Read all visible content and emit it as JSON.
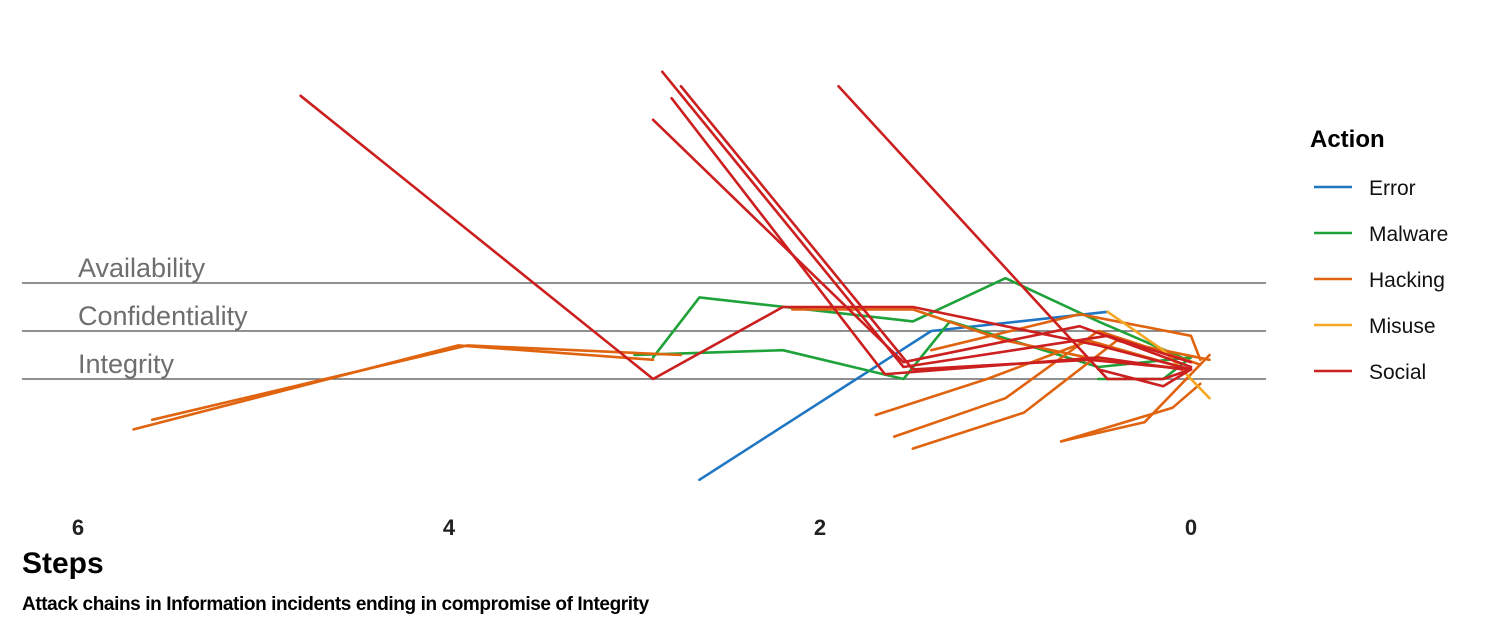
{
  "chart_data": {
    "type": "line",
    "title": "",
    "xlabel": "Steps",
    "caption": "Attack chains in Information incidents ending in compromise of Integrity",
    "xlim": [
      6.3,
      -0.4
    ],
    "x_ticks": [
      6,
      4,
      2,
      0
    ],
    "ylim": [
      -1.1,
      3.3
    ],
    "grid": false,
    "bands": [
      {
        "label": "Availability",
        "level": 3
      },
      {
        "label": "Confidentiality",
        "level": 2
      },
      {
        "label": "Integrity",
        "level": 1
      }
    ],
    "legend": {
      "title": "Action",
      "placement": "right",
      "items": [
        {
          "label": "Error",
          "color": "#1f77c4"
        },
        {
          "label": "Malware",
          "color": "#1fa23a"
        },
        {
          "label": "Hacking",
          "color": "#e0640f"
        },
        {
          "label": "Misuse",
          "color": "#f5a623"
        },
        {
          "label": "Social",
          "color": "#cc1f1f"
        }
      ]
    },
    "series": [
      {
        "action": "Error",
        "color": "#1f77c4",
        "x": [
          2.65,
          1.4,
          0.45
        ],
        "y": [
          -1.1,
          2.0,
          2.4
        ]
      },
      {
        "action": "Malware",
        "color": "#1fa23a",
        "x": [
          2.9,
          2.65,
          1.5,
          1.0,
          0.5,
          0.05
        ],
        "y": [
          1.45,
          2.7,
          2.2,
          3.1,
          2.2,
          1.45
        ]
      },
      {
        "action": "Malware",
        "color": "#1fa23a",
        "x": [
          3.0,
          2.2,
          1.55,
          1.3,
          0.5,
          0.0
        ],
        "y": [
          1.5,
          1.6,
          1.0,
          2.2,
          1.25,
          1.45
        ]
      },
      {
        "action": "Malware",
        "color": "#1fa23a",
        "x": [
          0.5,
          0.15,
          0.0
        ],
        "y": [
          1.0,
          1.0,
          1.45
        ]
      },
      {
        "action": "Hacking",
        "color": "#e0640f",
        "x": [
          5.7,
          3.95,
          2.9
        ],
        "y": [
          -0.05,
          1.7,
          1.4
        ]
      },
      {
        "action": "Hacking",
        "color": "#e0640f",
        "x": [
          5.6,
          3.9,
          2.75
        ],
        "y": [
          0.15,
          1.7,
          1.5
        ]
      },
      {
        "action": "Hacking",
        "color": "#e0640f",
        "x": [
          2.15,
          1.5,
          1.0,
          0.5,
          0.0
        ],
        "y": [
          2.45,
          2.45,
          1.8,
          1.4,
          1.2
        ]
      },
      {
        "action": "Hacking",
        "color": "#e0640f",
        "x": [
          1.7,
          1.1,
          0.55,
          0.1
        ],
        "y": [
          0.25,
          1.0,
          1.8,
          1.3
        ]
      },
      {
        "action": "Hacking",
        "color": "#e0640f",
        "x": [
          1.6,
          1.0,
          0.5,
          -0.05
        ],
        "y": [
          -0.2,
          0.6,
          2.0,
          1.3
        ]
      },
      {
        "action": "Hacking",
        "color": "#e0640f",
        "x": [
          1.5,
          0.9,
          0.4,
          -0.1
        ],
        "y": [
          -0.45,
          0.3,
          1.8,
          1.4
        ]
      },
      {
        "action": "Hacking",
        "color": "#e0640f",
        "x": [
          0.7,
          0.25,
          -0.1
        ],
        "y": [
          -0.3,
          0.1,
          1.5
        ]
      },
      {
        "action": "Hacking",
        "color": "#e0640f",
        "x": [
          0.7,
          0.1,
          -0.05
        ],
        "y": [
          -0.3,
          0.4,
          0.9
        ]
      },
      {
        "action": "Hacking",
        "color": "#e0640f",
        "x": [
          1.4,
          0.6,
          0.0,
          -0.05
        ],
        "y": [
          1.6,
          2.35,
          1.9,
          1.4
        ]
      },
      {
        "action": "Misuse",
        "color": "#f5a623",
        "x": [
          0.45,
          0.15,
          -0.1
        ],
        "y": [
          2.4,
          1.6,
          0.6
        ]
      },
      {
        "action": "Social",
        "color": "#cc1f1f",
        "x": [
          4.8,
          2.9,
          2.2,
          1.5,
          0.5,
          0.0
        ],
        "y": [
          6.9,
          1.0,
          2.5,
          2.5,
          1.7,
          1.2
        ]
      },
      {
        "action": "Social",
        "color": "#cc1f1f",
        "x": [
          2.85,
          1.55,
          0.45,
          0.0
        ],
        "y": [
          7.4,
          1.25,
          1.9,
          1.35
        ]
      },
      {
        "action": "Social",
        "color": "#cc1f1f",
        "x": [
          2.75,
          1.5,
          0.55,
          0.0
        ],
        "y": [
          7.1,
          1.2,
          1.4,
          1.2
        ]
      },
      {
        "action": "Social",
        "color": "#cc1f1f",
        "x": [
          2.9,
          1.55,
          0.6,
          0.0
        ],
        "y": [
          6.4,
          1.35,
          2.1,
          1.25
        ]
      },
      {
        "action": "Social",
        "color": "#cc1f1f",
        "x": [
          2.8,
          1.65,
          0.5,
          0.05
        ],
        "y": [
          6.85,
          1.1,
          1.45,
          1.2
        ]
      },
      {
        "action": "Social",
        "color": "#cc1f1f",
        "x": [
          1.9,
          0.45,
          0.15,
          0.0
        ],
        "y": [
          7.1,
          1.0,
          1.0,
          1.2
        ]
      },
      {
        "action": "Social",
        "color": "#cc1f1f",
        "x": [
          0.5,
          0.15,
          0.0
        ],
        "y": [
          1.2,
          0.85,
          1.2
        ]
      }
    ]
  }
}
